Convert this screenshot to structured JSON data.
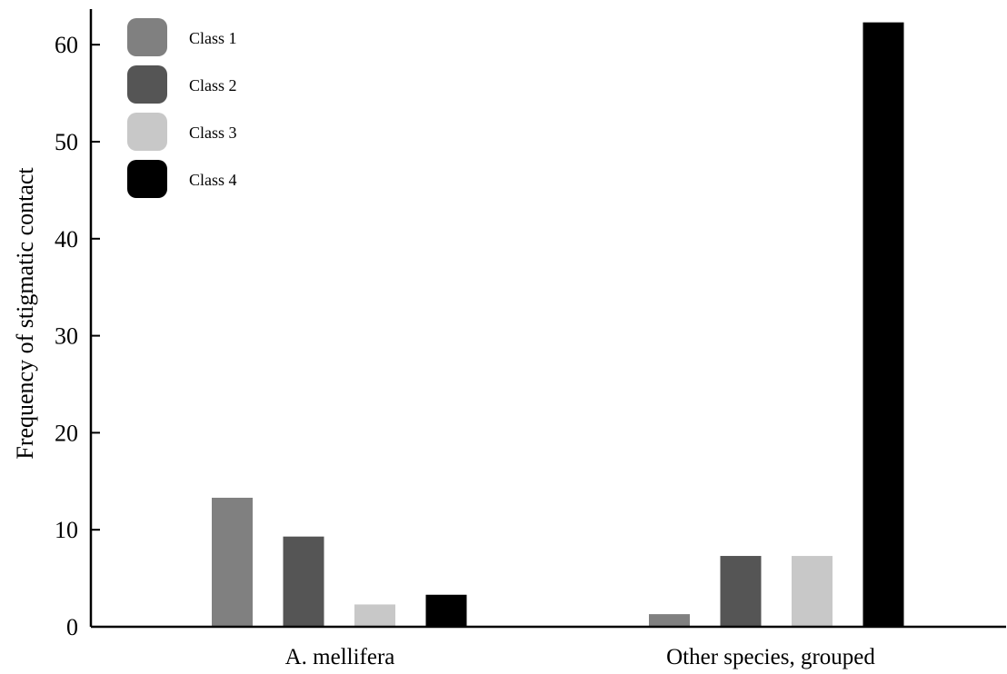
{
  "chart_data": {
    "type": "bar",
    "title": "",
    "xlabel": "",
    "ylabel": "Frequency of stigmatic contact",
    "categories": [
      "A. mellifera",
      "Other species, grouped"
    ],
    "series": [
      {
        "name": "Class 1",
        "color": "#808080",
        "values": [
          13.3,
          1.3
        ]
      },
      {
        "name": "Class 2",
        "color": "#555555",
        "values": [
          9.3,
          7.3
        ]
      },
      {
        "name": "Class 3",
        "color": "#c8c8c8",
        "values": [
          2.3,
          7.3
        ]
      },
      {
        "name": "Class 4",
        "color": "#000000",
        "values": [
          3.3,
          62.3
        ]
      }
    ],
    "ylim": [
      0,
      64
    ],
    "yticks": [
      0,
      10,
      20,
      30,
      40,
      50,
      60
    ],
    "grid": false,
    "legend_position": "top-left"
  }
}
